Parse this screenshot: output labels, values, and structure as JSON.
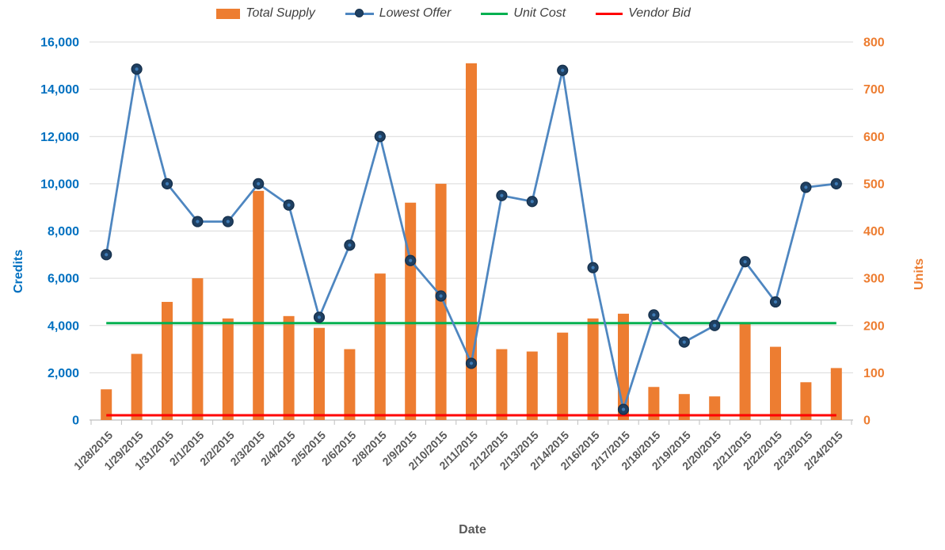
{
  "chart_data": {
    "type": "combo",
    "categories": [
      "1/28/2015",
      "1/29/2015",
      "1/31/2015",
      "2/1/2015",
      "2/2/2015",
      "2/3/2015",
      "2/4/2015",
      "2/5/2015",
      "2/6/2015",
      "2/8/2015",
      "2/9/2015",
      "2/10/2015",
      "2/11/2015",
      "2/12/2015",
      "2/13/2015",
      "2/14/2015",
      "2/16/2015",
      "2/17/2015",
      "2/18/2015",
      "2/19/2015",
      "2/20/2015",
      "2/21/2015",
      "2/22/2015",
      "2/23/2015",
      "2/24/2015"
    ],
    "series": [
      {
        "name": "Total Supply",
        "type": "bar",
        "axis": "right",
        "color": "#ED7D31",
        "values": [
          65,
          140,
          250,
          300,
          215,
          485,
          220,
          195,
          150,
          310,
          460,
          500,
          755,
          150,
          145,
          185,
          215,
          225,
          70,
          55,
          50,
          205,
          155,
          80,
          110
        ]
      },
      {
        "name": "Lowest Offer",
        "type": "line",
        "axis": "left",
        "color": "#4E86C0",
        "marker_fill": "#1F4062",
        "marker_stroke": "#16314D",
        "marker_center": "#3E7BB6",
        "values": [
          7000,
          14850,
          10000,
          8400,
          8400,
          10000,
          9100,
          4350,
          7400,
          12000,
          6750,
          5250,
          2400,
          9500,
          9250,
          14800,
          6450,
          450,
          4450,
          3300,
          4000,
          6700,
          5000,
          9850,
          10000
        ]
      },
      {
        "name": "Unit Cost",
        "type": "constant-line",
        "axis": "left",
        "color": "#00B050",
        "constant": 4100
      },
      {
        "name": "Vendor Bid",
        "type": "constant-line",
        "axis": "left",
        "color": "#FF0000",
        "constant": 200
      }
    ],
    "xlabel": "Date",
    "ylabel_left": "Credits",
    "ylabel_right": "Units",
    "y_left": {
      "min": 0,
      "max": 16000,
      "step": 2000
    },
    "y_right": {
      "min": 0,
      "max": 800,
      "step": 100
    },
    "grid": true,
    "legend_position": "top",
    "colors": {
      "gridline": "#D9D9D9",
      "axis_line": "#BFBFBF",
      "left_tick_text": "#0070C0",
      "right_tick_text": "#ED7D31",
      "date_text": "#595959"
    }
  }
}
